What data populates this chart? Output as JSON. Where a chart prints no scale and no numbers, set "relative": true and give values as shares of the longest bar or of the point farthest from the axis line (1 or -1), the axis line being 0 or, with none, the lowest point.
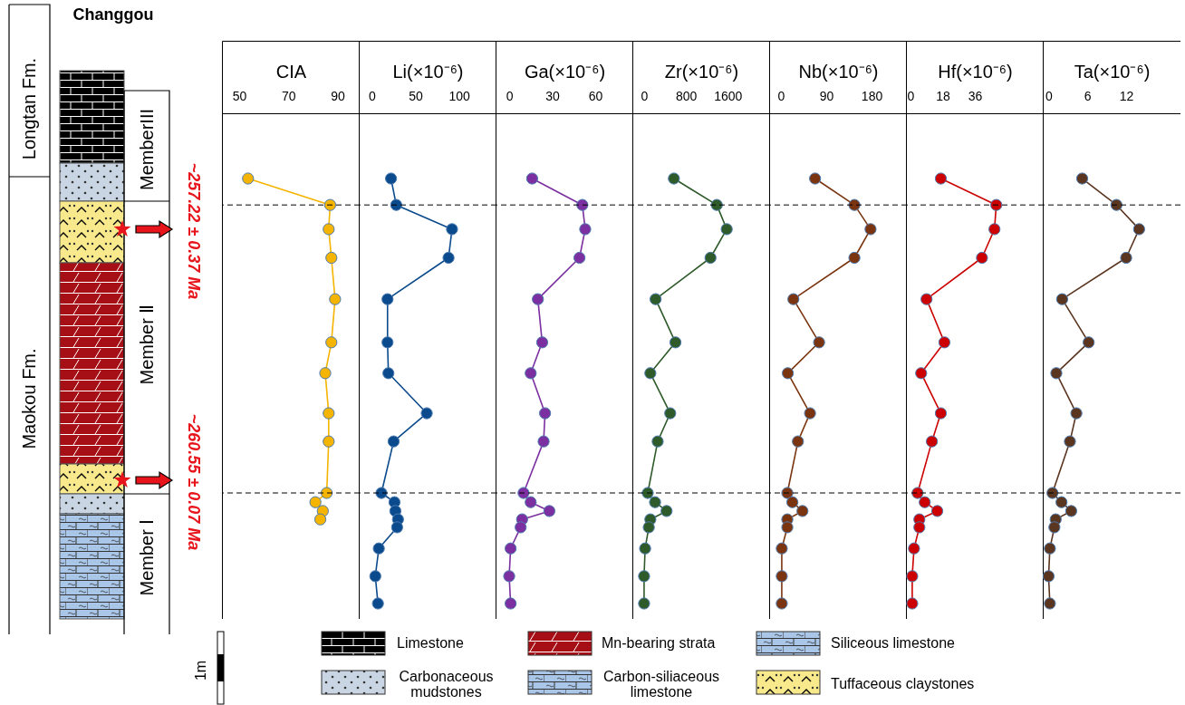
{
  "chart_data": [
    {
      "type": "other",
      "title": "Changgou",
      "annotations": [
        "Longtan Fm.",
        "Maokou Fm.",
        "MemberIII",
        "Member Ⅱ",
        "Member Ⅰ",
        "~257.22 ± 0.37 Ma",
        "~260.55 ± 0.07 Ma",
        "1m",
        "Limestone",
        "Mn-bearing strata",
        "Siliceous limestone",
        "Carbonaceous mudstones",
        "Carbon-siliaceous limestone",
        "Tuffaceous claystones"
      ]
    },
    {
      "type": "line",
      "xlabel": "CIA",
      "relative": true,
      "xlim": [
        43,
        99
      ],
      "xticks": [
        50,
        70,
        90
      ],
      "marker": "circle",
      "grid": false,
      "ref_lines": [
        {
          "axis": "y",
          "value": 0.94,
          "line_style": "dashed"
        },
        {
          "axis": "y",
          "value": 0.286,
          "line_style": "dashed"
        }
      ],
      "series": [
        {
          "color": "#f5b400",
          "x": [
            53.6,
            87,
            86.4,
            87.5,
            89,
            87.5,
            85,
            86.4,
            86.4,
            85.6,
            81,
            84,
            83
          ],
          "values": [
            1,
            0.94,
            0.885,
            0.82,
            0.726,
            0.628,
            0.558,
            0.467,
            0.403,
            0.286,
            0.265,
            0.245,
            0.226
          ]
        }
      ]
    },
    {
      "type": "line",
      "xlabel": "Li(×10⁻⁶)",
      "relative": true,
      "xlim": [
        -15,
        143
      ],
      "xticks": [
        0,
        50,
        100
      ],
      "marker": "circle",
      "grid": false,
      "ref_lines": [
        {
          "axis": "y",
          "value": 0.94,
          "line_style": "dashed"
        },
        {
          "axis": "y",
          "value": 0.286,
          "line_style": "dashed"
        }
      ],
      "series": [
        {
          "color": "#0b4a8c",
          "x": [
            22,
            28,
            92,
            88,
            18,
            18,
            19,
            63,
            25,
            11,
            26,
            27,
            30,
            29,
            8,
            4,
            7
          ],
          "values": [
            1,
            0.94,
            0.885,
            0.82,
            0.726,
            0.628,
            0.558,
            0.467,
            0.403,
            0.286,
            0.265,
            0.245,
            0.226,
            0.208,
            0.16,
            0.097,
            0.035
          ]
        }
      ]
    },
    {
      "type": "line",
      "xlabel": "Ga(×10⁻⁶)",
      "relative": true,
      "xlim": [
        -9.5,
        86.5
      ],
      "xticks": [
        0,
        30,
        60
      ],
      "marker": "circle",
      "grid": false,
      "ref_lines": [
        {
          "axis": "y",
          "value": 0.94,
          "line_style": "dashed"
        },
        {
          "axis": "y",
          "value": 0.286,
          "line_style": "dashed"
        }
      ],
      "series": [
        {
          "color": "#7b2fa0",
          "x": [
            16,
            51,
            53,
            49,
            20,
            23,
            15,
            25,
            24,
            10,
            15,
            28,
            9,
            8,
            1,
            0,
            1
          ],
          "values": [
            1,
            0.94,
            0.885,
            0.82,
            0.726,
            0.628,
            0.558,
            0.467,
            0.403,
            0.286,
            0.265,
            0.245,
            0.226,
            0.208,
            0.16,
            0.097,
            0.035
          ]
        }
      ]
    },
    {
      "type": "line",
      "xlabel": "Zr(×10⁻⁶)",
      "relative": true,
      "xlim": [
        -224,
        2409
      ],
      "xticks": [
        0,
        800,
        1600
      ],
      "marker": "circle",
      "grid": false,
      "ref_lines": [
        {
          "axis": "y",
          "value": 0.94,
          "line_style": "dashed"
        },
        {
          "axis": "y",
          "value": 0.286,
          "line_style": "dashed"
        }
      ],
      "series": [
        {
          "color": "#2f5a2a",
          "x": [
            570,
            1390,
            1580,
            1270,
            220,
            600,
            120,
            500,
            260,
            70,
            210,
            430,
            120,
            90,
            20,
            0,
            0
          ],
          "values": [
            1,
            0.94,
            0.885,
            0.82,
            0.726,
            0.628,
            0.558,
            0.467,
            0.403,
            0.286,
            0.265,
            0.245,
            0.226,
            0.208,
            0.16,
            0.097,
            0.035
          ]
        }
      ]
    },
    {
      "type": "line",
      "xlabel": "Nb(×10⁻⁶)",
      "relative": true,
      "xlim": [
        -23,
        250
      ],
      "xticks": [
        0,
        90,
        180
      ],
      "marker": "circle",
      "grid": false,
      "ref_lines": [
        {
          "axis": "y",
          "value": 0.94,
          "line_style": "dashed"
        },
        {
          "axis": "y",
          "value": 0.286,
          "line_style": "dashed"
        }
      ],
      "series": [
        {
          "color": "#7a3510",
          "x": [
            68,
            146,
            178,
            146,
            25,
            76,
            14,
            58,
            34,
            13,
            23,
            43,
            13,
            13,
            2,
            2,
            2
          ],
          "values": [
            1,
            0.94,
            0.885,
            0.82,
            0.726,
            0.628,
            0.558,
            0.467,
            0.403,
            0.286,
            0.265,
            0.245,
            0.226,
            0.208,
            0.16,
            0.097,
            0.035
          ]
        }
      ]
    },
    {
      "type": "line",
      "xlabel": "Hf(×10⁻⁶)",
      "relative": true,
      "xlim": [
        -2.5,
        74.5
      ],
      "xticks": [
        0,
        18,
        36
      ],
      "marker": "circle",
      "grid": false,
      "ref_lines": [
        {
          "axis": "y",
          "value": 0.94,
          "line_style": "dashed"
        },
        {
          "axis": "y",
          "value": 0.286,
          "line_style": "dashed"
        }
      ],
      "series": [
        {
          "color": "#cc0000",
          "x": [
            17,
            48,
            47,
            40,
            9,
            19,
            6,
            17,
            12,
            4,
            8,
            15,
            5,
            5,
            2,
            1,
            1
          ],
          "values": [
            1,
            0.94,
            0.885,
            0.82,
            0.726,
            0.628,
            0.558,
            0.467,
            0.403,
            0.286,
            0.265,
            0.245,
            0.226,
            0.208,
            0.16,
            0.097,
            0.035
          ]
        }
      ]
    },
    {
      "type": "line",
      "xlabel": "Ta(×10⁻⁶)",
      "relative": true,
      "xlim": [
        -0.9,
        20.4
      ],
      "xticks": [
        0,
        6,
        12
      ],
      "marker": "circle",
      "grid": false,
      "ref_lines": [
        {
          "axis": "y",
          "value": 0.94,
          "line_style": "dashed"
        },
        {
          "axis": "y",
          "value": 0.286,
          "line_style": "dashed"
        }
      ],
      "series": [
        {
          "color": "#5a3520",
          "x": [
            5.2,
            10.5,
            14,
            12,
            2.1,
            6.2,
            1.2,
            4.3,
            3.3,
            0.6,
            2,
            3.5,
            1.1,
            0.9,
            0.2,
            0,
            0.2
          ],
          "values": [
            1,
            0.94,
            0.885,
            0.82,
            0.726,
            0.628,
            0.558,
            0.467,
            0.403,
            0.286,
            0.265,
            0.245,
            0.226,
            0.208,
            0.16,
            0.097,
            0.035
          ]
        }
      ]
    }
  ]
}
